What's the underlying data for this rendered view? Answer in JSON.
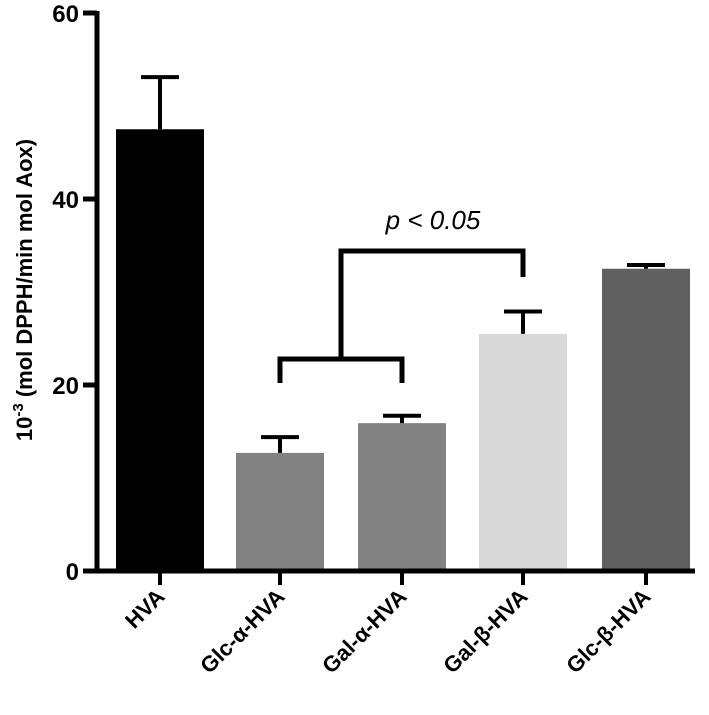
{
  "chart_data": {
    "type": "bar",
    "categories": [
      "HVA",
      "Glc-α-HVA",
      "Gal-α-HVA",
      "Gal-β-HVA",
      "Glc-β-HVA"
    ],
    "values": [
      47.5,
      12.7,
      15.9,
      25.5,
      32.5
    ],
    "errors": [
      5.6,
      1.7,
      0.8,
      2.4,
      0.4
    ],
    "colors": [
      "#000000",
      "#828282",
      "#828282",
      "#d9d9d9",
      "#606060"
    ],
    "ylabel": {
      "prefix": "10",
      "superscript": "-3",
      "rest": " (mol DPPH/min mol Aox)"
    },
    "ylim": [
      0,
      60
    ],
    "yticks": [
      "0",
      "20",
      "40",
      "60"
    ],
    "grid": false,
    "annotation": {
      "text": "p < 0.05",
      "left_group": [
        "Glc-α-HVA",
        "Gal-α-HVA"
      ],
      "right_group": [
        "Gal-β-HVA"
      ]
    }
  }
}
